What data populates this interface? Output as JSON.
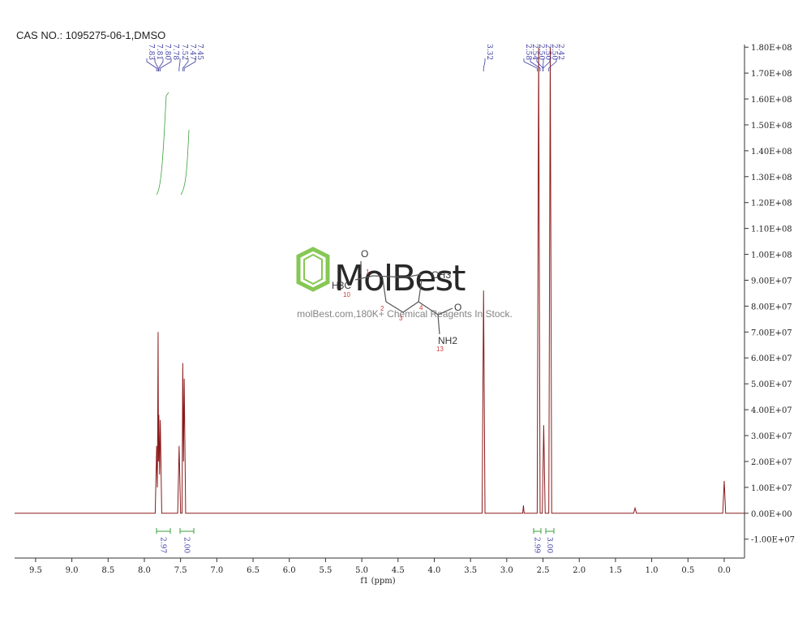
{
  "chart_data": {
    "type": "line",
    "title": "CAS NO.: 1095275-06-1,DMSO",
    "x_label": "f1 (ppm)",
    "xlim": [
      9.79,
      -0.28
    ],
    "ylim": [
      -17300000,
      181000000
    ],
    "xticks": [
      9.5,
      {
        "value": 9,
        "label": "9.0"
      },
      8.5,
      {
        "value": 8,
        "label": "8.0"
      },
      7.5,
      {
        "value": 7,
        "label": "7.0"
      },
      6.5,
      {
        "value": 6,
        "label": "6.0"
      },
      5.5,
      {
        "value": 5,
        "label": "5.0"
      },
      4.5,
      {
        "value": 4,
        "label": "4.0"
      },
      3.5,
      {
        "value": 3,
        "label": "3.0"
      },
      2.5,
      {
        "value": 2,
        "label": "2.0"
      },
      1.5,
      {
        "value": 1,
        "label": "1.0"
      },
      0.5,
      {
        "value": 0,
        "label": "0.0"
      }
    ],
    "yticks": [
      {
        "value": 180000000,
        "label": "1.80E+08"
      },
      {
        "value": 170000000,
        "label": "1.70E+08"
      },
      {
        "value": 160000000,
        "label": "1.60E+08"
      },
      {
        "value": 150000000,
        "label": "1.50E+08"
      },
      {
        "value": 140000000,
        "label": "1.40E+08"
      },
      {
        "value": 130000000,
        "label": "1.30E+08"
      },
      {
        "value": 120000000,
        "label": "1.20E+08"
      },
      {
        "value": 110000000,
        "label": "1.10E+08"
      },
      {
        "value": 100000000,
        "label": "1.00E+08"
      },
      {
        "value": 90000000,
        "label": "9.00E+07"
      },
      {
        "value": 80000000,
        "label": "8.00E+07"
      },
      {
        "value": 70000000,
        "label": "7.00E+07"
      },
      {
        "value": 60000000,
        "label": "6.00E+07"
      },
      {
        "value": 50000000,
        "label": "5.00E+07"
      },
      {
        "value": 40000000,
        "label": "4.00E+07"
      },
      {
        "value": 30000000,
        "label": "3.00E+07"
      },
      {
        "value": 20000000,
        "label": "2.00E+07"
      },
      {
        "value": 10000000,
        "label": "1.00E+07"
      },
      {
        "value": 0,
        "label": "0.00E+00"
      },
      {
        "value": -10000000,
        "label": "-1.00E+07"
      }
    ],
    "series": [
      {
        "color": "#8b1a1a",
        "x": [
          9.79,
          7.85,
          7.83,
          7.82,
          7.81,
          7.805,
          7.8,
          7.79,
          7.78,
          7.76,
          7.54,
          7.52,
          7.5,
          7.48,
          7.47,
          7.46,
          7.45,
          7.43,
          3.34,
          3.32,
          3.3,
          2.78,
          2.77,
          2.76,
          2.58,
          2.56,
          2.54,
          2.51,
          2.49,
          2.47,
          2.42,
          2.4,
          2.38,
          1.25,
          1.23,
          1.21,
          0.02,
          0,
          -0.02,
          -0.28
        ],
        "values": [
          0,
          0,
          26000000,
          10000000,
          70000000,
          20000000,
          38000000,
          15000000,
          36000000,
          0,
          0,
          26000000,
          0,
          0,
          58000000,
          20000000,
          52000000,
          0,
          0,
          86000000,
          0,
          0,
          3000000,
          0,
          0,
          180000000,
          0,
          0,
          34000000,
          0,
          0,
          180000000,
          0,
          0,
          2000000,
          0,
          0,
          12500000,
          0,
          0
        ]
      }
    ],
    "peak_labels": [
      "7.83",
      "7.81",
      "7.80",
      "7.78",
      "7.52",
      "7.47",
      "7.45",
      "3.32",
      "2.58",
      "2.54",
      "2.50",
      "2.50",
      "2.50",
      "2.42"
    ],
    "integrals": [
      "2.97",
      "2.00",
      "2.99",
      "3.00"
    ],
    "watermark": {
      "logo": "MolBest",
      "text": "molBest.com,180K+ Chemical Reagents In Stock.",
      "structure_labels": [
        "O",
        "H3C",
        "10",
        "1",
        "2",
        "3",
        "4",
        "CH3",
        "O",
        "NH2",
        "13"
      ]
    }
  }
}
